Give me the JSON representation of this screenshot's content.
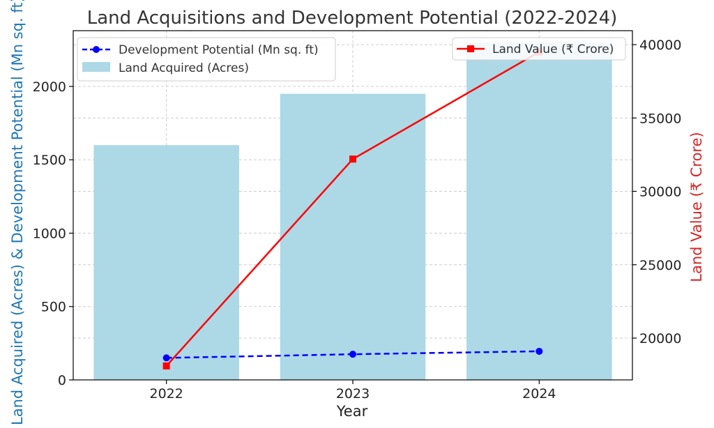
{
  "chart_data": {
    "type": "bar",
    "title": "Land Acquisitions and Development Potential (2022-2024)",
    "xlabel": "Year",
    "ylabel_left": "Land Acquired (Acres) & Development Potential (Mn sq. ft)",
    "ylabel_right": "Land Value (₹ Crore)",
    "categories": [
      "2022",
      "2023",
      "2024"
    ],
    "ylim_left": [
      0,
      2380
    ],
    "ylim_right": [
      17150,
      40950
    ],
    "yticks_left": [
      0,
      500,
      1000,
      1500,
      2000
    ],
    "yticks_right": [
      20000,
      25000,
      30000,
      35000,
      40000
    ],
    "grid": true,
    "series": [
      {
        "name": "Land Acquired (Acres)",
        "type": "bar",
        "axis": "left",
        "color": "#add8e6",
        "values": [
          1600,
          1950,
          2300
        ]
      },
      {
        "name": "Development Potential (Mn sq. ft)",
        "type": "line",
        "axis": "left",
        "color": "#0000ff",
        "linestyle": "dashed",
        "marker": "circle",
        "values": [
          150,
          175,
          195
        ]
      },
      {
        "name": "Land Value (₹ Crore)",
        "type": "line",
        "axis": "right",
        "color": "#ff0000",
        "linestyle": "solid",
        "marker": "square",
        "values": [
          18100,
          32200,
          39500
        ]
      }
    ],
    "legend_left_placement": "top-left",
    "legend_right_placement": "top-right"
  }
}
